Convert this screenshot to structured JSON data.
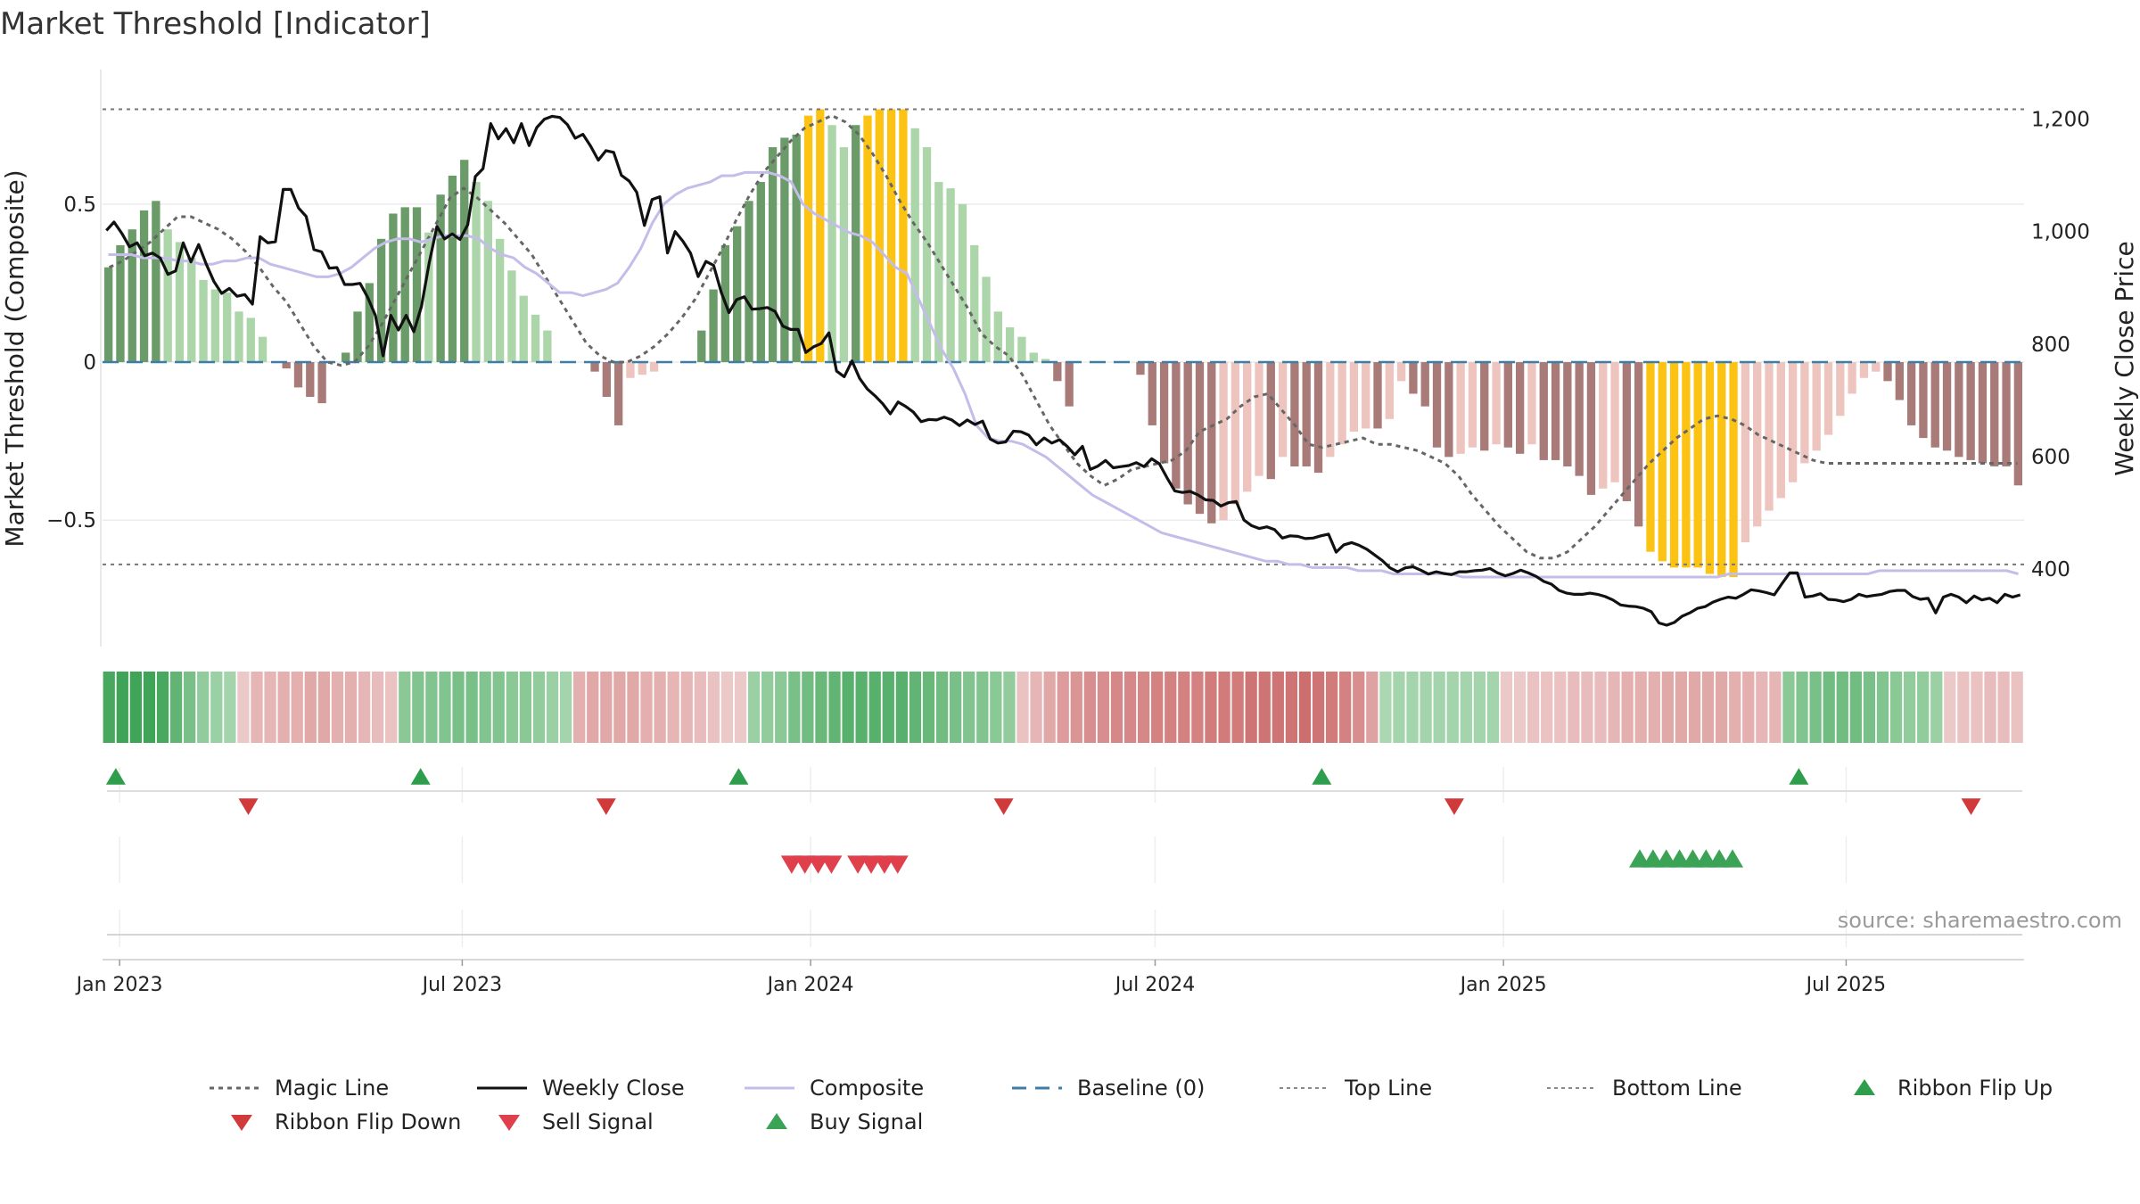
{
  "chart_data": {
    "type": "bar",
    "title": "Market Threshold [Indicator]",
    "ylabel": "Market Threshold (Composite)",
    "y2label": "Weekly Close Price",
    "ylim": [
      -0.9,
      0.92
    ],
    "y2lim": [
      262,
      1285
    ],
    "yticks": [
      0.5,
      0,
      -0.5
    ],
    "ytick_labels": [
      "0.5",
      "0",
      "−0.5"
    ],
    "y2ticks": [
      1200,
      1000,
      800,
      600,
      400
    ],
    "y2tick_labels": [
      "1,200",
      "1,000",
      "800",
      "600",
      "400"
    ],
    "x_start": "2022-12-23",
    "x_end": "2025-10-03",
    "xticks": [
      "2023-01-01",
      "2023-07-01",
      "2024-01-01",
      "2024-07-01",
      "2025-01-01",
      "2025-07-01"
    ],
    "xtick_labels": [
      "Jan 2023",
      "Jul 2023",
      "Jan 2024",
      "Jul 2024",
      "Jan 2025",
      "Jul 2025"
    ],
    "top_line": 0.8,
    "bottom_line": -0.64,
    "baseline": 0,
    "source": "source: sharemaestro.com",
    "grid": true,
    "colors": {
      "pos_strong": "#6a9b68",
      "pos_weak": "#acd6a9",
      "neg_strong": "#a87a78",
      "neg_weak": "#eec4bf",
      "extreme": "#fcc313",
      "close": "#111111",
      "composite": "#c5bde9",
      "magic": "#666666",
      "baseline": "#3d7ea6",
      "signal_green": "#2e9e4c",
      "signal_red": "#d03a3a"
    },
    "composite_bars": [
      0.3,
      0.37,
      0.42,
      0.48,
      0.51,
      0.42,
      0.38,
      0.33,
      0.26,
      0.23,
      0.22,
      0.16,
      0.14,
      0.08,
      0,
      -0.02,
      -0.08,
      -0.11,
      -0.13,
      0,
      0.03,
      0.16,
      0.25,
      0.39,
      0.47,
      0.49,
      0.49,
      0.41,
      0.53,
      0.59,
      0.64,
      0.57,
      0.51,
      0.39,
      0.29,
      0.21,
      0.15,
      0.1,
      0,
      0,
      0,
      -0.03,
      -0.11,
      -0.2,
      -0.05,
      -0.04,
      -0.03,
      0,
      0,
      0,
      0.1,
      0.23,
      0.37,
      0.43,
      0.51,
      0.57,
      0.68,
      0.71,
      0.72,
      0.78,
      0.8,
      0.75,
      0.68,
      0.75,
      0.78,
      0.8,
      0.8,
      0.8,
      0.74,
      0.68,
      0.57,
      0.55,
      0.5,
      0.37,
      0.27,
      0.16,
      0.11,
      0.08,
      0.03,
      0.01,
      -0.06,
      -0.14,
      0,
      0,
      0,
      0,
      0,
      -0.04,
      -0.2,
      -0.32,
      -0.4,
      -0.45,
      -0.48,
      -0.51,
      -0.5,
      -0.45,
      -0.41,
      -0.36,
      -0.37,
      -0.3,
      -0.33,
      -0.33,
      -0.35,
      -0.3,
      -0.26,
      -0.22,
      -0.21,
      -0.21,
      -0.18,
      -0.06,
      -0.1,
      -0.14,
      -0.27,
      -0.3,
      -0.29,
      -0.27,
      -0.28,
      -0.26,
      -0.27,
      -0.29,
      -0.26,
      -0.31,
      -0.31,
      -0.33,
      -0.36,
      -0.42,
      -0.4,
      -0.38,
      -0.44,
      -0.52,
      -0.6,
      -0.63,
      -0.65,
      -0.65,
      -0.65,
      -0.67,
      -0.68,
      -0.68,
      -0.57,
      -0.52,
      -0.47,
      -0.43,
      -0.38,
      -0.32,
      -0.28,
      -0.23,
      -0.17,
      -0.1,
      -0.05,
      -0.03,
      -0.06,
      -0.12,
      -0.2,
      -0.24,
      -0.27,
      -0.28,
      -0.3,
      -0.31,
      -0.32,
      -0.33,
      -0.33,
      -0.39
    ],
    "weekly_close": [
      1002,
      1017,
      997,
      973,
      980,
      957,
      962,
      953,
      924,
      930,
      980,
      946,
      977,
      942,
      911,
      890,
      899,
      885,
      888,
      871,
      991,
      980,
      982,
      1075,
      1075,
      1042,
      1027,
      968,
      964,
      935,
      936,
      906,
      906,
      908,
      883,
      851,
      779,
      851,
      825,
      851,
      822,
      867,
      945,
      1009,
      987,
      996,
      986,
      1012,
      1098,
      1112,
      1192,
      1165,
      1183,
      1158,
      1192,
      1153,
      1185,
      1200,
      1205,
      1203,
      1190,
      1166,
      1173,
      1152,
      1127,
      1144,
      1141,
      1100,
      1090,
      1070,
      1011,
      1057,
      1062,
      962,
      1000,
      983,
      962,
      920,
      947,
      940,
      892,
      856,
      879,
      884,
      862,
      863,
      865,
      858,
      832,
      826,
      826,
      785,
      795,
      801,
      820,
      752,
      742,
      770,
      739,
      720,
      708,
      694,
      676,
      697,
      689,
      679,
      662,
      666,
      665,
      670,
      665,
      655,
      665,
      657,
      663,
      631,
      624,
      626,
      645,
      644,
      638,
      621,
      633,
      624,
      630,
      618,
      603,
      618,
      577,
      583,
      593,
      580,
      582,
      584,
      589,
      582,
      596,
      587,
      562,
      539,
      536,
      538,
      532,
      523,
      522,
      512,
      518,
      520,
      487,
      477,
      472,
      475,
      470,
      455,
      459,
      458,
      454,
      455,
      459,
      462,
      430,
      443,
      447,
      442,
      435,
      425,
      415,
      402,
      395,
      402,
      404,
      398,
      391,
      395,
      392,
      390,
      395,
      395,
      397,
      398,
      401,
      393,
      388,
      392,
      398,
      393,
      387,
      378,
      373,
      362,
      357,
      355,
      355,
      357,
      355,
      351,
      345,
      336,
      334,
      333,
      330,
      324,
      304,
      300,
      305,
      316,
      322,
      330,
      333,
      341,
      346,
      350,
      348,
      355,
      363,
      361,
      358,
      354,
      374,
      393,
      393,
      350,
      352,
      356,
      346,
      345,
      342,
      346,
      355,
      351,
      353,
      355,
      360,
      362,
      362,
      351,
      346,
      348,
      322,
      350,
      355,
      350,
      340,
      352,
      345,
      348,
      340,
      355,
      350,
      354
    ],
    "composite": [
      0.34,
      0.34,
      0.34,
      0.33,
      0.33,
      0.33,
      0.32,
      0.32,
      0.31,
      0.31,
      0.32,
      0.32,
      0.33,
      0.33,
      0.31,
      0.3,
      0.29,
      0.28,
      0.27,
      0.27,
      0.28,
      0.3,
      0.33,
      0.36,
      0.38,
      0.39,
      0.39,
      0.38,
      0.39,
      0.4,
      0.4,
      0.4,
      0.39,
      0.36,
      0.34,
      0.33,
      0.3,
      0.28,
      0.25,
      0.22,
      0.22,
      0.21,
      0.22,
      0.23,
      0.25,
      0.3,
      0.36,
      0.44,
      0.5,
      0.53,
      0.55,
      0.56,
      0.57,
      0.59,
      0.59,
      0.6,
      0.6,
      0.6,
      0.59,
      0.57,
      0.5,
      0.47,
      0.45,
      0.43,
      0.41,
      0.4,
      0.38,
      0.34,
      0.3,
      0.28,
      0.2,
      0.12,
      0.04,
      -0.02,
      -0.1,
      -0.2,
      -0.24,
      -0.25,
      -0.25,
      -0.26,
      -0.28,
      -0.3,
      -0.33,
      -0.36,
      -0.39,
      -0.42,
      -0.44,
      -0.46,
      -0.48,
      -0.5,
      -0.52,
      -0.54,
      -0.55,
      -0.56,
      -0.57,
      -0.58,
      -0.59,
      -0.6,
      -0.61,
      -0.62,
      -0.63,
      -0.63,
      -0.64,
      -0.64,
      -0.65,
      -0.65,
      -0.65,
      -0.65,
      -0.66,
      -0.66,
      -0.66,
      -0.67,
      -0.67,
      -0.67,
      -0.67,
      -0.67,
      -0.67,
      -0.68,
      -0.68,
      -0.68,
      -0.68,
      -0.68,
      -0.68,
      -0.68,
      -0.68,
      -0.68,
      -0.68,
      -0.68,
      -0.68,
      -0.68,
      -0.68,
      -0.68,
      -0.68,
      -0.68,
      -0.68,
      -0.68,
      -0.68,
      -0.68,
      -0.68,
      -0.68,
      -0.67,
      -0.67,
      -0.67,
      -0.67,
      -0.67,
      -0.67,
      -0.67,
      -0.67,
      -0.67,
      -0.67,
      -0.67,
      -0.67,
      -0.67,
      -0.66,
      -0.66,
      -0.66,
      -0.66,
      -0.66,
      -0.66,
      -0.66,
      -0.66,
      -0.66,
      -0.66,
      -0.66,
      -0.66,
      -0.67
    ],
    "magic_line": [
      0.3,
      0.32,
      0.35,
      0.38,
      0.42,
      0.46,
      0.46,
      0.44,
      0.42,
      0.39,
      0.35,
      0.3,
      0.24,
      0.19,
      0.12,
      0.05,
      0,
      -0.01,
      0,
      0.05,
      0.12,
      0.2,
      0.28,
      0.36,
      0.44,
      0.52,
      0.55,
      0.52,
      0.48,
      0.44,
      0.39,
      0.34,
      0.27,
      0.2,
      0.13,
      0.06,
      0.02,
      0,
      0,
      0.02,
      0.05,
      0.09,
      0.14,
      0.2,
      0.28,
      0.36,
      0.45,
      0.53,
      0.6,
      0.65,
      0.7,
      0.74,
      0.76,
      0.78,
      0.76,
      0.72,
      0.66,
      0.59,
      0.51,
      0.44,
      0.38,
      0.31,
      0.24,
      0.17,
      0.09,
      0.05,
      0.02,
      -0.04,
      -0.12,
      -0.2,
      -0.26,
      -0.32,
      -0.36,
      -0.39,
      -0.37,
      -0.34,
      -0.33,
      -0.32,
      -0.31,
      -0.28,
      -0.22,
      -0.2,
      -0.18,
      -0.14,
      -0.11,
      -0.1,
      -0.15,
      -0.2,
      -0.26,
      -0.27,
      -0.26,
      -0.25,
      -0.24,
      -0.26,
      -0.26,
      -0.27,
      -0.28,
      -0.3,
      -0.32,
      -0.36,
      -0.42,
      -0.47,
      -0.52,
      -0.56,
      -0.6,
      -0.62,
      -0.62,
      -0.6,
      -0.56,
      -0.52,
      -0.47,
      -0.42,
      -0.37,
      -0.32,
      -0.28,
      -0.24,
      -0.21,
      -0.18,
      -0.17,
      -0.18,
      -0.2,
      -0.23,
      -0.25,
      -0.27,
      -0.29,
      -0.31,
      -0.32,
      -0.32,
      -0.32,
      -0.32,
      -0.32,
      -0.32,
      -0.32,
      -0.32,
      -0.32,
      -0.32,
      -0.32,
      -0.32,
      -0.32,
      -0.32,
      -0.32
    ],
    "ribbon": [
      0.85,
      0.9,
      0.9,
      0.9,
      0.85,
      0.7,
      0.55,
      0.4,
      0.35,
      0.3,
      -0.15,
      -0.3,
      -0.3,
      -0.35,
      -0.35,
      -0.4,
      -0.4,
      -0.35,
      -0.35,
      -0.3,
      -0.25,
      -0.2,
      0.45,
      0.5,
      0.5,
      0.5,
      0.55,
      0.55,
      0.5,
      0.5,
      0.45,
      0.45,
      0.4,
      0.35,
      0.3,
      -0.35,
      -0.4,
      -0.4,
      -0.4,
      -0.4,
      -0.35,
      -0.35,
      -0.3,
      -0.3,
      -0.25,
      -0.2,
      -0.15,
      -0.15,
      0.35,
      0.4,
      0.45,
      0.55,
      0.6,
      0.65,
      0.7,
      0.75,
      0.75,
      0.75,
      0.75,
      0.75,
      0.7,
      0.65,
      0.6,
      0.55,
      0.5,
      0.5,
      0.45,
      0.4,
      -0.2,
      -0.3,
      -0.4,
      -0.5,
      -0.55,
      -0.6,
      -0.6,
      -0.65,
      -0.65,
      -0.65,
      -0.7,
      -0.7,
      -0.7,
      -0.7,
      -0.75,
      -0.75,
      -0.75,
      -0.8,
      -0.8,
      -0.8,
      -0.8,
      -0.85,
      -0.8,
      -0.75,
      -0.7,
      -0.6,
      -0.45,
      0.25,
      0.3,
      0.3,
      0.3,
      0.3,
      0.3,
      0.3,
      0.3,
      0.3,
      -0.15,
      -0.15,
      -0.2,
      -0.2,
      -0.2,
      -0.25,
      -0.25,
      -0.25,
      -0.3,
      -0.35,
      -0.35,
      -0.35,
      -0.4,
      -0.4,
      -0.4,
      -0.4,
      -0.4,
      -0.35,
      -0.35,
      -0.3,
      -0.3,
      0.45,
      0.5,
      0.55,
      0.6,
      0.6,
      0.6,
      0.55,
      0.5,
      0.45,
      0.4,
      0.4,
      0.35,
      -0.15,
      -0.2,
      -0.2,
      -0.25,
      -0.25,
      -0.2
    ],
    "ribbon_flip_up": [
      "2022-12-30",
      "2023-06-09",
      "2023-11-24",
      "2024-09-27",
      "2025-06-06"
    ],
    "ribbon_flip_down": [
      "2023-03-10",
      "2023-09-15",
      "2024-04-12",
      "2024-12-06",
      "2025-09-05"
    ],
    "sell_signal": [
      "2023-12-22",
      "2023-12-29",
      "2024-01-05",
      "2024-01-12",
      "2024-01-26",
      "2024-02-02",
      "2024-02-09",
      "2024-02-16"
    ],
    "buy_signal": [
      "2025-03-14",
      "2025-03-21",
      "2025-03-28",
      "2025-04-04",
      "2025-04-11",
      "2025-04-18",
      "2025-04-25",
      "2025-05-02"
    ],
    "legend": [
      {
        "name": "Magic Line",
        "style": "dotted",
        "color": "#666666"
      },
      {
        "name": "Weekly Close",
        "style": "solid",
        "color": "#111111"
      },
      {
        "name": "Composite",
        "style": "solid",
        "color": "#c5bde9"
      },
      {
        "name": "Baseline (0)",
        "style": "dashed",
        "color": "#3d7ea6"
      },
      {
        "name": "Top Line",
        "style": "dotted-light",
        "color": "#888888"
      },
      {
        "name": "Bottom Line",
        "style": "dotted-light",
        "color": "#888888"
      },
      {
        "name": "Ribbon Flip Up",
        "style": "tri-up",
        "color": "#2e9e4c"
      },
      {
        "name": "Ribbon Flip Down",
        "style": "tri-down",
        "color": "#d03a3a"
      },
      {
        "name": "Sell Signal",
        "style": "tri-down",
        "color": "#e0404c"
      },
      {
        "name": "Buy Signal",
        "style": "tri-up",
        "color": "#3aa356"
      }
    ],
    "legend_position": "bottom"
  }
}
